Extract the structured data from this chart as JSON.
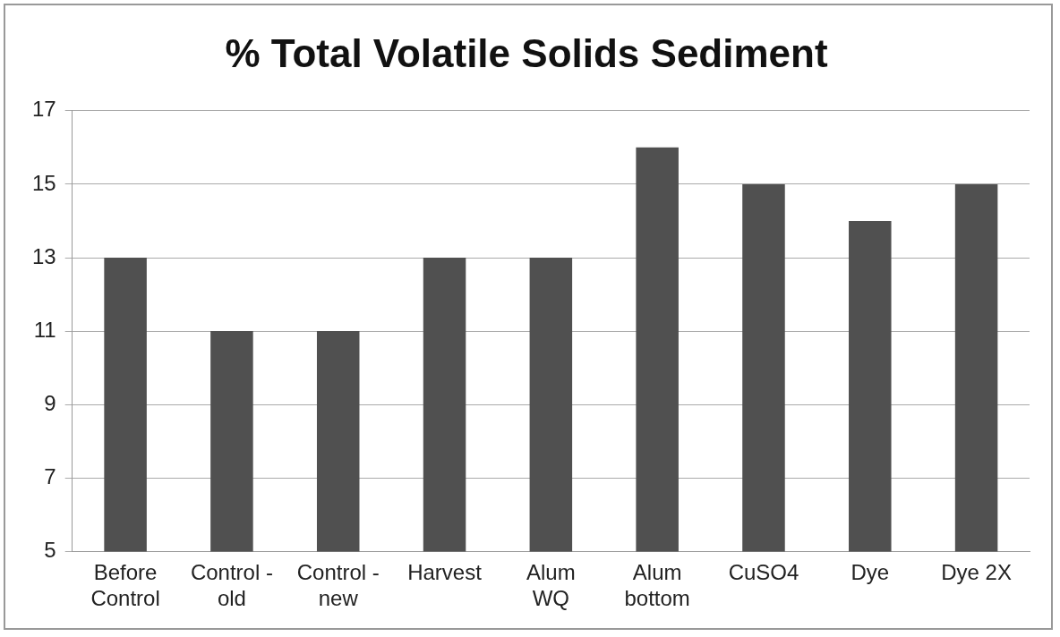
{
  "chart_data": {
    "type": "bar",
    "title": "% Total Volatile Solids Sediment",
    "categories": [
      "Before Control",
      "Control - old",
      "Control - new",
      "Harvest",
      "Alum WQ",
      "Alum bottom",
      "CuSO4",
      "Dye",
      "Dye 2X"
    ],
    "values": [
      13,
      11,
      11,
      13,
      13,
      16,
      15,
      14,
      15
    ],
    "color": "#505050",
    "ylim": [
      5,
      17
    ],
    "yticks": [
      5,
      7,
      9,
      11,
      13,
      15,
      17
    ],
    "grid": "y",
    "legend": false
  }
}
